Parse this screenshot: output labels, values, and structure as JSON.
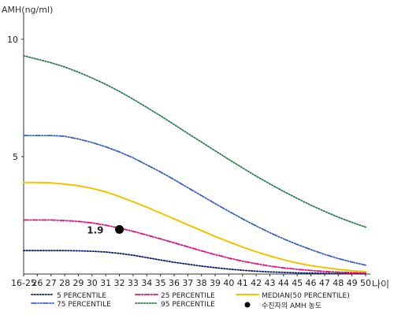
{
  "chart_data": {
    "type": "line",
    "ylabel": "AMH(ng/ml)",
    "xlabel": "나이",
    "x": [
      "16-25",
      "26",
      "27",
      "28",
      "29",
      "30",
      "31",
      "32",
      "33",
      "34",
      "35",
      "36",
      "37",
      "38",
      "39",
      "40",
      "41",
      "42",
      "43",
      "44",
      "45",
      "46",
      "47",
      "48",
      "49",
      "50"
    ],
    "ylim": [
      0,
      11
    ],
    "yticks": [
      5,
      10
    ],
    "grid": false,
    "legend_position": "bottom",
    "series": [
      {
        "name": "5 PERCENTILE",
        "style": "dotted",
        "color": "#0a1e6b",
        "values": [
          1.0,
          1.0,
          1.0,
          1.0,
          0.99,
          0.97,
          0.94,
          0.88,
          0.8,
          0.7,
          0.6,
          0.5,
          0.42,
          0.34,
          0.27,
          0.21,
          0.16,
          0.12,
          0.09,
          0.07,
          0.05,
          0.04,
          0.03,
          0.02,
          0.02,
          0.01
        ]
      },
      {
        "name": "25 PERCENTILE",
        "style": "dashdot",
        "color": "#e0117f",
        "values": [
          2.3,
          2.3,
          2.3,
          2.28,
          2.24,
          2.18,
          2.08,
          1.96,
          1.82,
          1.66,
          1.5,
          1.33,
          1.16,
          0.99,
          0.83,
          0.68,
          0.55,
          0.44,
          0.34,
          0.26,
          0.2,
          0.15,
          0.11,
          0.08,
          0.06,
          0.04
        ]
      },
      {
        "name": "MEDIAN(50 PERCENTILE)",
        "style": "solid",
        "color": "#f2c400",
        "values": [
          3.9,
          3.9,
          3.88,
          3.83,
          3.76,
          3.65,
          3.5,
          3.3,
          3.08,
          2.85,
          2.6,
          2.35,
          2.1,
          1.85,
          1.6,
          1.37,
          1.15,
          0.95,
          0.77,
          0.61,
          0.47,
          0.36,
          0.27,
          0.2,
          0.14,
          0.1
        ]
      },
      {
        "name": "75 PERCENTILE",
        "style": "dashdotdot",
        "color": "#3a5fc8",
        "values": [
          5.9,
          5.9,
          5.9,
          5.87,
          5.75,
          5.6,
          5.42,
          5.2,
          4.95,
          4.65,
          4.35,
          4.02,
          3.68,
          3.34,
          3.0,
          2.67,
          2.35,
          2.05,
          1.76,
          1.5,
          1.26,
          1.04,
          0.84,
          0.66,
          0.51,
          0.38
        ]
      },
      {
        "name": "95 PERCENTILE",
        "style": "dotted",
        "color": "#2e7d4a",
        "values": [
          9.3,
          9.15,
          9.0,
          8.82,
          8.6,
          8.35,
          8.08,
          7.78,
          7.45,
          7.1,
          6.74,
          6.37,
          5.99,
          5.62,
          5.25,
          4.88,
          4.52,
          4.17,
          3.84,
          3.52,
          3.22,
          2.93,
          2.67,
          2.42,
          2.2,
          2.0
        ]
      }
    ],
    "patient_point": {
      "name": "수진자의 AMH 농도",
      "x": "32",
      "y": 1.9,
      "label": "1.9",
      "color": "#000000"
    }
  }
}
